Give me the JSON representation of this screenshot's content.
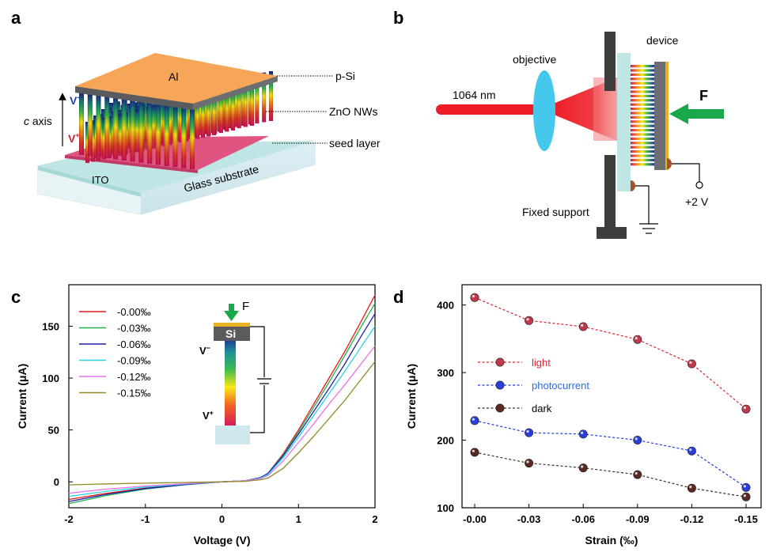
{
  "panels": {
    "a": {
      "label": "a",
      "al": "Al",
      "psi": "p-Si",
      "zno": "ZnO NWs",
      "seed": "seed layer",
      "ito": "ITO",
      "glass": "Glass substrate",
      "caxis_c": "c",
      "caxis_rest": " axis",
      "vminus": "V",
      "vplus": "V",
      "minus_sup": "-",
      "plus_sup": "+"
    },
    "b": {
      "label": "b",
      "device": "device",
      "objective": "objective",
      "wavelength": "1064 nm",
      "force": "F",
      "support": "Fixed support",
      "bias": "+2 V"
    },
    "c_inset": {
      "force": "F",
      "si": "Si",
      "vminus": "V",
      "vplus": "V",
      "minus_sup": "−",
      "plus_sup": "+"
    },
    "d": {
      "label": "d"
    },
    "c": {
      "label": "c"
    }
  },
  "colors": {
    "al": "#F7A559",
    "gray": "#6D6E71",
    "ito": "#BFE6E5",
    "seed": "#E0557F",
    "laser": "#EE1C25",
    "lens": "#46C7EC",
    "arrow": "#19A84A",
    "support": "#3D3D3D",
    "gold": "#E8B320"
  },
  "chart_data": [
    {
      "type": "line",
      "panel": "c",
      "xlabel": "Voltage (V)",
      "ylabel": "Current (μA)",
      "xlim": [
        -2,
        2
      ],
      "ylim": [
        -25,
        190
      ],
      "xticks": [
        "-2",
        "-1",
        "0",
        "1",
        "2"
      ],
      "yticks": [
        "0",
        "50",
        "100",
        "150"
      ],
      "legend_position": "top-left",
      "x": [
        -2,
        -1.5,
        -1,
        -0.5,
        0,
        0.3,
        0.5,
        0.6,
        0.8,
        1.0,
        1.2,
        1.4,
        1.6,
        1.8,
        2.0
      ],
      "series": [
        {
          "name": "-0.00‰",
          "color": "#E31A1C",
          "values": [
            -17,
            -11,
            -6,
            -2.5,
            0,
            1,
            4,
            8,
            27,
            50,
            75,
            100,
            125,
            152,
            180
          ]
        },
        {
          "name": "-0.03‰",
          "color": "#22B14C",
          "values": [
            -21,
            -13,
            -7,
            -3,
            0,
            1,
            4,
            8,
            26,
            48,
            72,
            96,
            121,
            147,
            172
          ]
        },
        {
          "name": "-0.06‰",
          "color": "#1F1FA5",
          "values": [
            -19,
            -12,
            -6.5,
            -2.8,
            0,
            1,
            4,
            8,
            25,
            46,
            68,
            90,
            113,
            138,
            162
          ]
        },
        {
          "name": "-0.09‰",
          "color": "#26D3E6",
          "values": [
            -14,
            -9,
            -5,
            -2.2,
            0,
            1,
            3.5,
            7,
            23,
            43,
            64,
            85,
            106,
            128,
            150
          ]
        },
        {
          "name": "-0.12‰",
          "color": "#E874E6",
          "values": [
            -11,
            -7,
            -4,
            -1.8,
            0,
            1,
            3,
            6,
            20,
            38,
            56,
            75,
            93,
            112,
            131
          ]
        },
        {
          "name": "-0.15‰",
          "color": "#8F8A25",
          "values": [
            -3,
            -2,
            -1.3,
            -0.7,
            0,
            0.5,
            2,
            3.5,
            13,
            28,
            44,
            61,
            78,
            97,
            116
          ]
        }
      ]
    },
    {
      "type": "line",
      "panel": "d",
      "xlabel": "Strain (‰)",
      "ylabel": "Current (μA)",
      "categories": [
        "-0.00",
        "-0.03",
        "-0.06",
        "-0.09",
        "-0.12",
        "-0.15"
      ],
      "ylim": [
        100,
        430
      ],
      "yticks": [
        "100",
        "200",
        "300",
        "400"
      ],
      "legend_position": "center-left",
      "series": [
        {
          "name": "light",
          "color": "#E0202E",
          "point": "#C0394B",
          "label_color": "#E0202E",
          "values": [
            411,
            377,
            368,
            349,
            313,
            246
          ]
        },
        {
          "name": "photocurrent",
          "color": "#1E38E6",
          "point": "#2B3FD8",
          "label_color": "#2F6BE0",
          "values": [
            229,
            211,
            209,
            200,
            184,
            130
          ]
        },
        {
          "name": "dark",
          "color": "#333333",
          "point": "#5A2A22",
          "label_color": "#000000",
          "values": [
            182,
            166,
            159,
            149,
            129,
            116
          ]
        }
      ]
    }
  ]
}
